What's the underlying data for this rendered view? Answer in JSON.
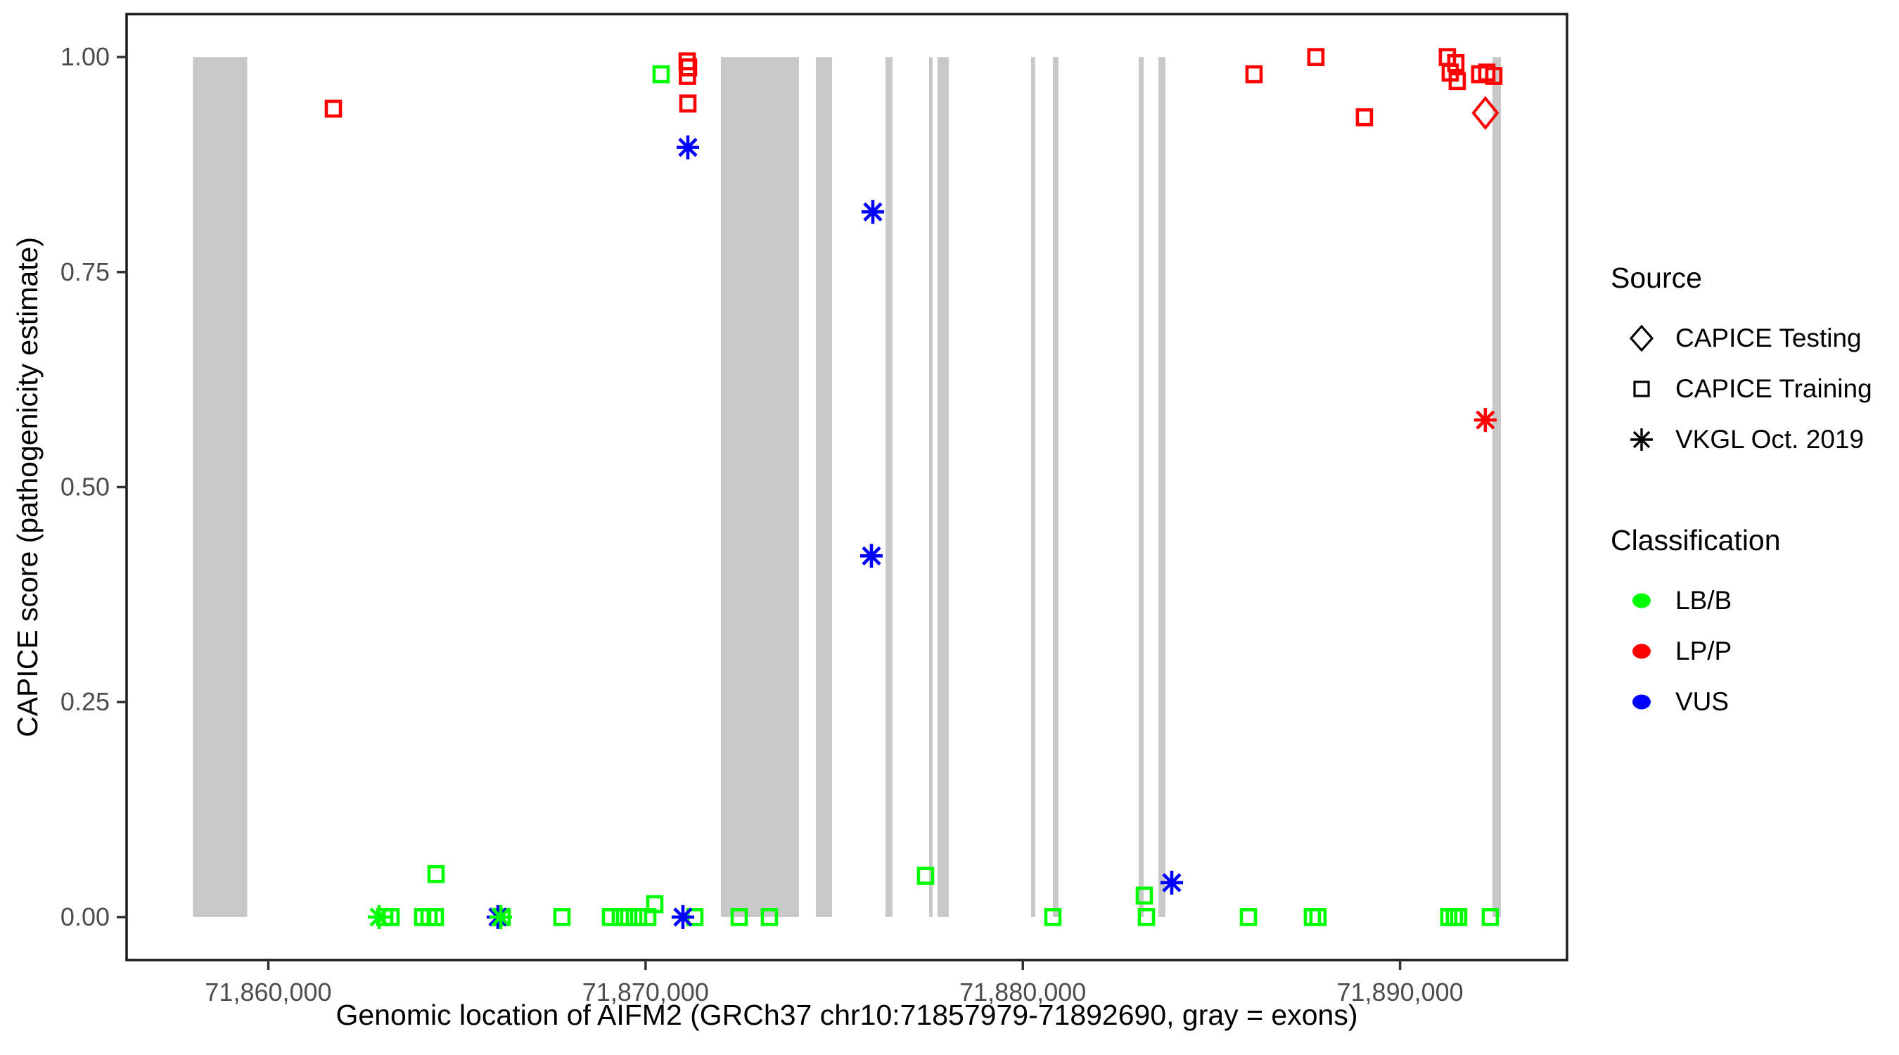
{
  "axes": {
    "x_title": "Genomic location of AIFM2 (GRCh37 chr10:71857979-71892690, gray = exons)",
    "y_title": "CAPICE score (pathogenicity estimate)"
  },
  "legend": {
    "source": {
      "title": "Source",
      "items": [
        {
          "label": "CAPICE Testing",
          "shape": "diamond"
        },
        {
          "label": "CAPICE Training",
          "shape": "square"
        },
        {
          "label": "VKGL Oct. 2019",
          "shape": "asterisk"
        }
      ]
    },
    "classification": {
      "title": "Classification",
      "items": [
        {
          "label": "LB/B",
          "color": "#00FF00"
        },
        {
          "label": "LP/P",
          "color": "#FF0000"
        },
        {
          "label": "VUS",
          "color": "#0000FF"
        }
      ]
    }
  },
  "chart_data": {
    "type": "scatter",
    "xlabel": "Genomic location of AIFM2 (GRCh37 chr10:71857979-71892690, gray = exons)",
    "ylabel": "CAPICE score (pathogenicity estimate)",
    "x_domain": [
      71856243,
      71894426
    ],
    "y_domain": [
      -0.05,
      1.05
    ],
    "x_ticks": [
      {
        "value": 71860000,
        "label": "71,860,000"
      },
      {
        "value": 71870000,
        "label": "71,870,000"
      },
      {
        "value": 71880000,
        "label": "71,880,000"
      },
      {
        "value": 71890000,
        "label": "71,890,000"
      }
    ],
    "y_ticks": [
      {
        "value": 0.0,
        "label": "0.00"
      },
      {
        "value": 0.25,
        "label": "0.25"
      },
      {
        "value": 0.5,
        "label": "0.50"
      },
      {
        "value": 0.75,
        "label": "0.75"
      },
      {
        "value": 1.0,
        "label": "1.00"
      }
    ],
    "grid": false,
    "legend_position": "right",
    "exon_color": "#C8C8C8",
    "classification_colors": {
      "LB/B": "#00FF00",
      "LP/P": "#FF0000",
      "VUS": "#0000FF"
    },
    "source_shapes": {
      "CAPICE Testing": "diamond",
      "CAPICE Training": "square",
      "VKGL Oct. 2019": "asterisk"
    },
    "exons": [
      {
        "start": 71858000,
        "end": 71859440
      },
      {
        "start": 71871996,
        "end": 71874066
      },
      {
        "start": 71874513,
        "end": 71874942
      },
      {
        "start": 71876359,
        "end": 71876545
      },
      {
        "start": 71877515,
        "end": 71877608
      },
      {
        "start": 71877738,
        "end": 71878036
      },
      {
        "start": 71880218,
        "end": 71880330
      },
      {
        "start": 71880796,
        "end": 71880945
      },
      {
        "start": 71883071,
        "end": 71883202
      },
      {
        "start": 71883593,
        "end": 71883780
      },
      {
        "start": 71892448,
        "end": 71892672
      }
    ],
    "points": [
      {
        "bp": 71863085,
        "score": 0.0,
        "source": "CAPICE Training",
        "class": "LB/B"
      },
      {
        "bp": 71863253,
        "score": 0.0,
        "source": "CAPICE Training",
        "class": "LB/B"
      },
      {
        "bp": 71864092,
        "score": 0.0,
        "source": "CAPICE Training",
        "class": "LB/B"
      },
      {
        "bp": 71864260,
        "score": 0.0,
        "source": "CAPICE Training",
        "class": "LB/B"
      },
      {
        "bp": 71864427,
        "score": 0.0,
        "source": "CAPICE Training",
        "class": "LB/B"
      },
      {
        "bp": 71864446,
        "score": 0.05,
        "source": "CAPICE Training",
        "class": "LB/B"
      },
      {
        "bp": 71866199,
        "score": 0.0,
        "source": "CAPICE Training",
        "class": "LB/B"
      },
      {
        "bp": 71867783,
        "score": 0.0,
        "source": "CAPICE Training",
        "class": "LB/B"
      },
      {
        "bp": 71869070,
        "score": 0.0,
        "source": "CAPICE Training",
        "class": "LB/B"
      },
      {
        "bp": 71869331,
        "score": 0.0,
        "source": "CAPICE Training",
        "class": "LB/B"
      },
      {
        "bp": 71869554,
        "score": 0.0,
        "source": "CAPICE Training",
        "class": "LB/B"
      },
      {
        "bp": 71869815,
        "score": 0.0,
        "source": "CAPICE Training",
        "class": "LB/B"
      },
      {
        "bp": 71870058,
        "score": 0.0,
        "source": "CAPICE Training",
        "class": "LB/B"
      },
      {
        "bp": 71870244,
        "score": 0.015,
        "source": "CAPICE Training",
        "class": "LB/B"
      },
      {
        "bp": 71870412,
        "score": 0.98,
        "source": "CAPICE Training",
        "class": "LB/B"
      },
      {
        "bp": 71871307,
        "score": 0.0,
        "source": "CAPICE Training",
        "class": "LB/B"
      },
      {
        "bp": 71872482,
        "score": 0.0,
        "source": "CAPICE Training",
        "class": "LB/B"
      },
      {
        "bp": 71873283,
        "score": 0.0,
        "source": "CAPICE Training",
        "class": "LB/B"
      },
      {
        "bp": 71877422,
        "score": 0.048,
        "source": "CAPICE Training",
        "class": "LB/B"
      },
      {
        "bp": 71880797,
        "score": 0.0,
        "source": "CAPICE Training",
        "class": "LB/B"
      },
      {
        "bp": 71883221,
        "score": 0.025,
        "source": "CAPICE Training",
        "class": "LB/B"
      },
      {
        "bp": 71883277,
        "score": 0.0,
        "source": "CAPICE Training",
        "class": "LB/B"
      },
      {
        "bp": 71885980,
        "score": 0.0,
        "source": "CAPICE Training",
        "class": "LB/B"
      },
      {
        "bp": 71887676,
        "score": 0.0,
        "source": "CAPICE Training",
        "class": "LB/B"
      },
      {
        "bp": 71887825,
        "score": 0.0,
        "source": "CAPICE Training",
        "class": "LB/B"
      },
      {
        "bp": 71891292,
        "score": 0.0,
        "source": "CAPICE Training",
        "class": "LB/B"
      },
      {
        "bp": 71891441,
        "score": 0.0,
        "source": "CAPICE Training",
        "class": "LB/B"
      },
      {
        "bp": 71891553,
        "score": 0.0,
        "source": "CAPICE Training",
        "class": "LB/B"
      },
      {
        "bp": 71892392,
        "score": 0.0,
        "source": "CAPICE Training",
        "class": "LB/B"
      },
      {
        "bp": 71861724,
        "score": 0.94,
        "source": "CAPICE Training",
        "class": "LP/P"
      },
      {
        "bp": 71871102,
        "score": 0.995,
        "source": "CAPICE Training",
        "class": "LP/P"
      },
      {
        "bp": 71871139,
        "score": 0.988,
        "source": "CAPICE Training",
        "class": "LP/P"
      },
      {
        "bp": 71871110,
        "score": 0.978,
        "source": "CAPICE Training",
        "class": "LP/P"
      },
      {
        "bp": 71871121,
        "score": 0.946,
        "source": "CAPICE Training",
        "class": "LP/P"
      },
      {
        "bp": 71886129,
        "score": 0.98,
        "source": "CAPICE Training",
        "class": "LP/P"
      },
      {
        "bp": 71887769,
        "score": 1.0,
        "source": "CAPICE Training",
        "class": "LP/P"
      },
      {
        "bp": 71889055,
        "score": 0.93,
        "source": "CAPICE Training",
        "class": "LP/P"
      },
      {
        "bp": 71891255,
        "score": 1.0,
        "source": "CAPICE Training",
        "class": "LP/P"
      },
      {
        "bp": 71891330,
        "score": 0.982,
        "source": "CAPICE Training",
        "class": "LP/P"
      },
      {
        "bp": 71891479,
        "score": 0.993,
        "source": "CAPICE Training",
        "class": "LP/P"
      },
      {
        "bp": 71891516,
        "score": 0.972,
        "source": "CAPICE Training",
        "class": "LP/P"
      },
      {
        "bp": 71892112,
        "score": 0.98,
        "source": "CAPICE Training",
        "class": "LP/P"
      },
      {
        "bp": 71892299,
        "score": 0.982,
        "source": "CAPICE Training",
        "class": "LP/P"
      },
      {
        "bp": 71892485,
        "score": 0.978,
        "source": "CAPICE Training",
        "class": "LP/P"
      },
      {
        "bp": 71866087,
        "score": 0.0,
        "source": "VKGL Oct. 2019",
        "class": "VUS"
      },
      {
        "bp": 71862936,
        "score": 0.0,
        "source": "VKGL Oct. 2019",
        "class": "LB/B"
      },
      {
        "bp": 71866161,
        "score": 0.0,
        "source": "VKGL Oct. 2019",
        "class": "LB/B"
      },
      {
        "bp": 71870990,
        "score": 0.0,
        "source": "VKGL Oct. 2019",
        "class": "VUS"
      },
      {
        "bp": 71871121,
        "score": 0.895,
        "source": "VKGL Oct. 2019",
        "class": "VUS"
      },
      {
        "bp": 71876024,
        "score": 0.82,
        "source": "VKGL Oct. 2019",
        "class": "VUS"
      },
      {
        "bp": 71875987,
        "score": 0.42,
        "source": "VKGL Oct. 2019",
        "class": "VUS"
      },
      {
        "bp": 71883948,
        "score": 0.04,
        "source": "VKGL Oct. 2019",
        "class": "VUS"
      },
      {
        "bp": 71892261,
        "score": 0.578,
        "source": "VKGL Oct. 2019",
        "class": "LP/P"
      },
      {
        "bp": 71892261,
        "score": 0.935,
        "source": "CAPICE Testing",
        "class": "LP/P"
      }
    ]
  }
}
